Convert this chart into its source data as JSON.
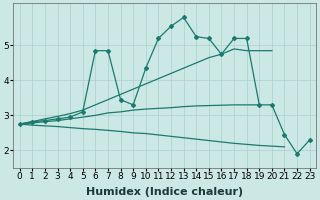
{
  "xlabel": "Humidex (Indice chaleur)",
  "x": [
    0,
    1,
    2,
    3,
    4,
    5,
    6,
    7,
    8,
    9,
    10,
    11,
    12,
    13,
    14,
    15,
    16,
    17,
    18,
    19,
    20,
    21,
    22,
    23
  ],
  "line_zigzag": [
    2.75,
    2.82,
    2.85,
    2.9,
    2.95,
    3.1,
    4.85,
    4.85,
    3.45,
    3.3,
    4.35,
    5.2,
    5.55,
    5.8,
    5.25,
    5.2,
    4.75,
    5.2,
    5.2,
    3.3,
    3.3,
    2.45,
    1.9,
    2.3
  ],
  "line_upper": [
    2.75,
    2.82,
    2.9,
    2.97,
    3.05,
    3.15,
    3.3,
    3.45,
    3.6,
    3.75,
    3.9,
    4.05,
    4.2,
    4.35,
    4.5,
    4.65,
    4.75,
    4.9,
    4.85,
    4.85,
    4.85,
    null,
    null,
    null
  ],
  "line_mid": [
    2.75,
    2.78,
    2.82,
    2.85,
    2.9,
    2.95,
    3.0,
    3.07,
    3.1,
    3.15,
    3.18,
    3.2,
    3.22,
    3.25,
    3.27,
    3.28,
    3.29,
    3.3,
    3.3,
    3.3,
    null,
    null,
    null,
    null
  ],
  "line_lower": [
    2.75,
    2.72,
    2.7,
    2.68,
    2.65,
    2.62,
    2.6,
    2.57,
    2.54,
    2.5,
    2.48,
    2.44,
    2.4,
    2.36,
    2.32,
    2.28,
    2.24,
    2.2,
    2.17,
    2.14,
    2.12,
    2.1,
    null,
    null
  ],
  "line_color": "#1a7a6e",
  "bg_color": "#cce8e4",
  "ylim": [
    1.5,
    6.2
  ],
  "xlim": [
    -0.5,
    23.5
  ],
  "grid_color": "#aad0cc",
  "tick_fontsize": 6.5,
  "label_fontsize": 8
}
